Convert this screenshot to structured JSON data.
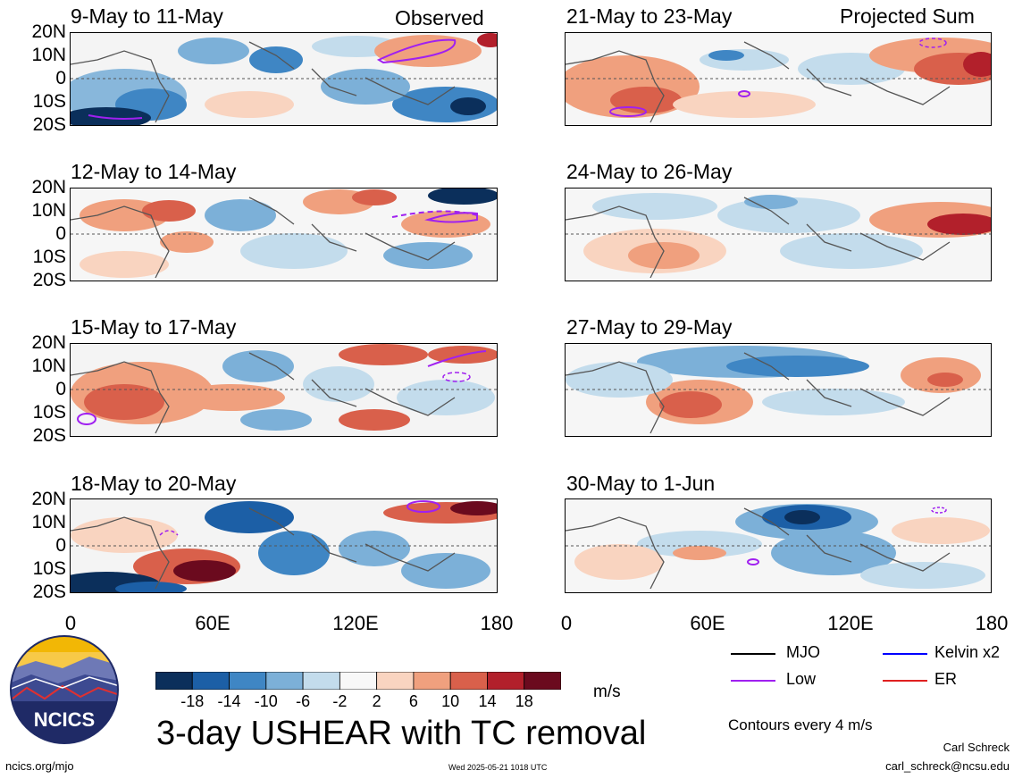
{
  "panels_left": [
    {
      "title": "9-May to 11-May",
      "corner": "Observed"
    },
    {
      "title": "12-May to 14-May",
      "corner": ""
    },
    {
      "title": "15-May to 17-May",
      "corner": ""
    },
    {
      "title": "18-May to 20-May",
      "corner": ""
    }
  ],
  "panels_right": [
    {
      "title": "21-May to 23-May",
      "corner": "Projected Sum"
    },
    {
      "title": "24-May to 26-May",
      "corner": ""
    },
    {
      "title": "27-May to 29-May",
      "corner": ""
    },
    {
      "title": "30-May to 1-Jun",
      "corner": ""
    }
  ],
  "lat_labels": [
    "20N",
    "10N",
    "0",
    "10S",
    "20S"
  ],
  "lon_labels": [
    "0",
    "60E",
    "120E",
    "180"
  ],
  "colorbar": {
    "ticks": [
      "-18",
      "-14",
      "-10",
      "-6",
      "-2",
      "2",
      "6",
      "10",
      "14",
      "18"
    ],
    "colors": [
      "#0b2f5b",
      "#1c5fa6",
      "#3f86c4",
      "#7cb0d8",
      "#c3dcec",
      "#f8f8f8",
      "#f9d4c0",
      "#f0a07e",
      "#d9604b",
      "#b2202b",
      "#6b0a1e"
    ],
    "units": "m/s"
  },
  "legend": [
    {
      "label": "MJO",
      "color": "#000000"
    },
    {
      "label": "Kelvin x2",
      "color": "#0000ff"
    },
    {
      "label": "Low",
      "color": "#a020f0"
    },
    {
      "label": "ER",
      "color": "#e02020"
    }
  ],
  "contour_note": "Contours every 4 m/s",
  "main_title": "3-day USHEAR with TC removal",
  "logo_text": "NCICS",
  "footer": {
    "url": "ncics.org/mjo",
    "timestamp": "Wed 2025-05-21 1018 UTC",
    "author": "Carl Schreck",
    "email": "carl_schreck@ncsu.edu"
  }
}
